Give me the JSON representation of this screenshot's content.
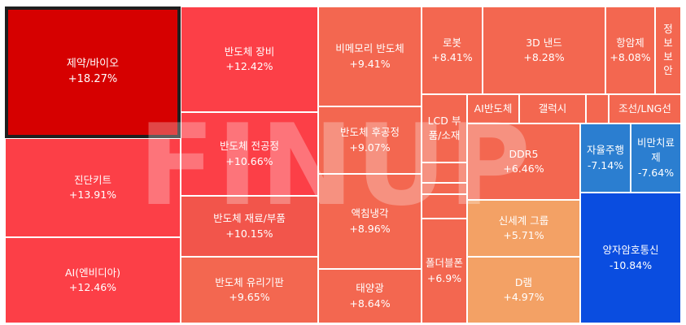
{
  "colors": {
    "selected_dark_red": "#d60000",
    "strong_red": "#fc3f47",
    "red": "#f2554b",
    "light_red": "#f36750",
    "orange": "#f3a165",
    "light_blue": "#2b7ed0",
    "blue": "#0a4de0"
  },
  "watermark": {
    "text": "FINUP"
  },
  "tiles": [
    {
      "name": "제약/바이오",
      "pct": "+18.27%"
    },
    {
      "name": "진단키트",
      "pct": "+13.91%"
    },
    {
      "name": "AI(엔비디아)",
      "pct": "+12.46%"
    },
    {
      "name": "반도체 장비",
      "pct": "+12.42%"
    },
    {
      "name": "반도체 전공정",
      "pct": "+10.66%"
    },
    {
      "name": "반도체 재료/부품",
      "pct": "+10.15%"
    },
    {
      "name": "반도체 유리기판",
      "pct": "+9.65%"
    },
    {
      "name": "비메모리 반도체",
      "pct": "+9.41%"
    },
    {
      "name": "반도체 후공정",
      "pct": "+9.07%"
    },
    {
      "name": "액침냉각",
      "pct": "+8.96%"
    },
    {
      "name": "태양광",
      "pct": "+8.64%"
    },
    {
      "name": "로봇",
      "pct": "+8.41%"
    },
    {
      "name": "3D 낸드",
      "pct": "+8.28%"
    },
    {
      "name": "항암제",
      "pct": "+8.08%"
    },
    {
      "name": "정보보안",
      "pct": ""
    },
    {
      "name": "LCD 부품/소재",
      "pct": ""
    },
    {
      "name": "AI반도체",
      "pct": ""
    },
    {
      "name": "갤럭시",
      "pct": ""
    },
    {
      "name": "조선/LNG선",
      "pct": ""
    },
    {
      "name": "DDR5",
      "pct": "+6.46%"
    },
    {
      "name": "자율주행",
      "pct": "-7.14%"
    },
    {
      "name": "비만치료제",
      "pct": "-7.64%"
    },
    {
      "name": "신세계 그룹",
      "pct": "+5.71%"
    },
    {
      "name": "양자암호통신",
      "pct": "-10.84%"
    },
    {
      "name": "폴더블폰",
      "pct": "+6.9%"
    },
    {
      "name": "D램",
      "pct": "+4.97%"
    }
  ]
}
